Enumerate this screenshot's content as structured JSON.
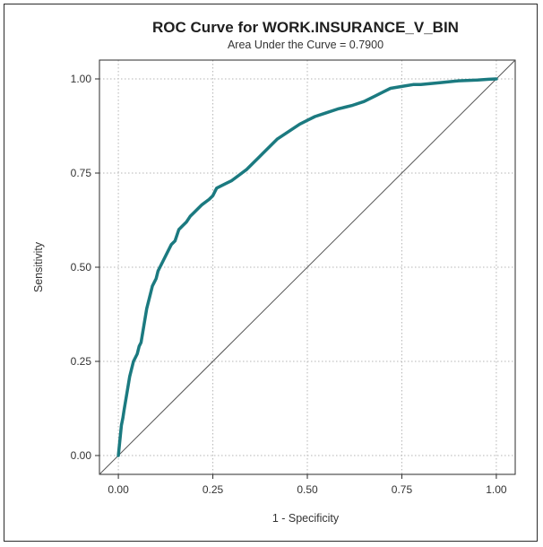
{
  "chart_data": {
    "type": "line",
    "title": "ROC Curve for WORK.INSURANCE_V_BIN",
    "subtitle": "Area Under the Curve = 0.7900",
    "xlabel": "1 - Specificity",
    "ylabel": "Sensitivity",
    "xlim": [
      -0.05,
      1.05
    ],
    "ylim": [
      -0.05,
      1.05
    ],
    "x_ticks": [
      "0.00",
      "0.25",
      "0.50",
      "0.75",
      "1.00"
    ],
    "y_ticks": [
      "0.00",
      "0.25",
      "0.50",
      "0.75",
      "1.00"
    ],
    "grid": true,
    "colors": {
      "roc": "#1b7a80",
      "diagonal": "#555555",
      "grid": "#b5b5b5",
      "frame": "#2b2b2b"
    },
    "series": [
      {
        "x": [
          0,
          0.002,
          0.005,
          0.008,
          0.012,
          0.015,
          0.02,
          0.025,
          0.03,
          0.035,
          0.04,
          0.05,
          0.055,
          0.06,
          0.065,
          0.07,
          0.075,
          0.08,
          0.085,
          0.09,
          0.095,
          0.1,
          0.105,
          0.11,
          0.115,
          0.12,
          0.13,
          0.14,
          0.15,
          0.16,
          0.17,
          0.18,
          0.19,
          0.2,
          0.22,
          0.24,
          0.25,
          0.26,
          0.28,
          0.3,
          0.32,
          0.34,
          0.36,
          0.37,
          0.38,
          0.4,
          0.42,
          0.45,
          0.48,
          0.5,
          0.52,
          0.55,
          0.58,
          0.6,
          0.62,
          0.65,
          0.68,
          0.7,
          0.72,
          0.75,
          0.78,
          0.8,
          0.85,
          0.9,
          0.95,
          0.98,
          1.0
        ],
        "y": [
          0,
          0.02,
          0.05,
          0.08,
          0.1,
          0.12,
          0.15,
          0.18,
          0.21,
          0.23,
          0.25,
          0.27,
          0.29,
          0.3,
          0.33,
          0.36,
          0.39,
          0.41,
          0.43,
          0.45,
          0.46,
          0.47,
          0.49,
          0.5,
          0.51,
          0.52,
          0.54,
          0.56,
          0.57,
          0.6,
          0.61,
          0.62,
          0.635,
          0.645,
          0.665,
          0.68,
          0.69,
          0.71,
          0.72,
          0.73,
          0.745,
          0.76,
          0.78,
          0.79,
          0.8,
          0.82,
          0.84,
          0.86,
          0.88,
          0.89,
          0.9,
          0.91,
          0.92,
          0.925,
          0.93,
          0.94,
          0.955,
          0.965,
          0.975,
          0.98,
          0.985,
          0.985,
          0.99,
          0.995,
          0.997,
          0.999,
          1.0
        ]
      }
    ]
  }
}
